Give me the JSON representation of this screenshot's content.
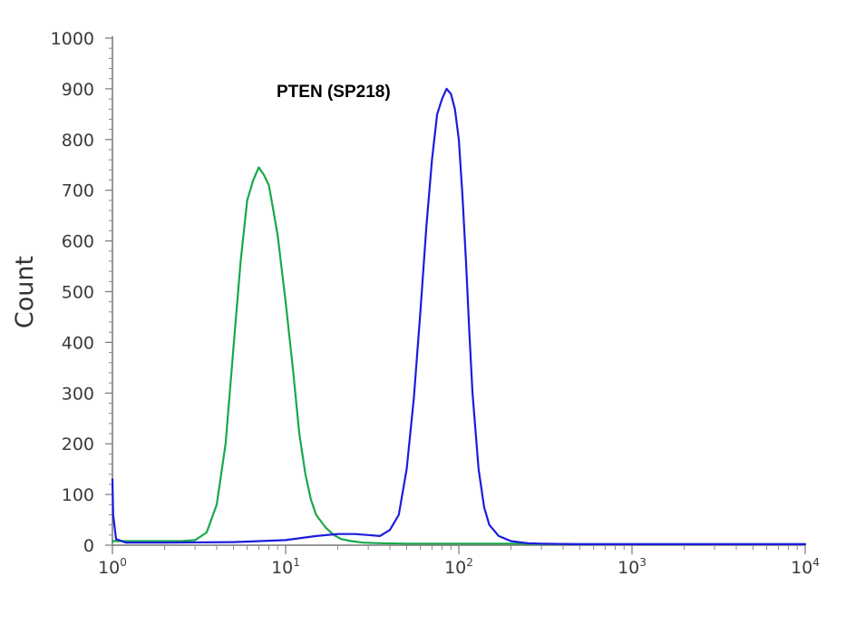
{
  "chart_data": {
    "type": "line",
    "title": "",
    "annotation": "PTEN (SP218)",
    "ylabel": "Count",
    "xlabel": "",
    "x_scale": "log",
    "xlim": [
      1,
      10000
    ],
    "ylim": [
      0,
      1000
    ],
    "y_ticks": [
      "0",
      "100",
      "200",
      "300",
      "400",
      "500",
      "600",
      "700",
      "800",
      "900",
      "1000"
    ],
    "x_ticks": [
      {
        "base": "10",
        "exp": "0"
      },
      {
        "base": "10",
        "exp": "1"
      },
      {
        "base": "10",
        "exp": "2"
      },
      {
        "base": "10",
        "exp": "3"
      },
      {
        "base": "10",
        "exp": "4"
      }
    ],
    "grid": false,
    "legend": "none",
    "series": [
      {
        "color": "#19a84a",
        "x": [
          1,
          1.5,
          2,
          2.5,
          3,
          3.5,
          4,
          4.5,
          5,
          5.5,
          6,
          6.5,
          7,
          7.5,
          8,
          8.5,
          9,
          10,
          11,
          12,
          13,
          14,
          15,
          17,
          19,
          21,
          24,
          28,
          35,
          50,
          100,
          200,
          500,
          1000,
          10000
        ],
        "y": [
          8,
          8,
          8,
          8,
          10,
          25,
          80,
          200,
          390,
          560,
          680,
          720,
          745,
          730,
          710,
          660,
          610,
          480,
          350,
          220,
          140,
          90,
          60,
          35,
          20,
          12,
          8,
          5,
          4,
          3,
          3,
          3,
          2,
          2,
          2
        ]
      },
      {
        "color": "#1c1cdc",
        "x": [
          1,
          1.01,
          1.05,
          1.2,
          2,
          5,
          10,
          15,
          20,
          25,
          30,
          35,
          40,
          45,
          50,
          55,
          60,
          65,
          70,
          75,
          80,
          85,
          90,
          95,
          100,
          105,
          110,
          115,
          120,
          130,
          140,
          150,
          170,
          200,
          250,
          300,
          500,
          1000,
          10000
        ],
        "y": [
          130,
          60,
          12,
          5,
          5,
          6,
          10,
          18,
          22,
          22,
          20,
          18,
          30,
          60,
          150,
          290,
          460,
          630,
          760,
          850,
          880,
          900,
          890,
          860,
          800,
          690,
          560,
          420,
          300,
          150,
          75,
          40,
          18,
          8,
          4,
          3,
          2,
          2,
          2
        ]
      }
    ]
  }
}
